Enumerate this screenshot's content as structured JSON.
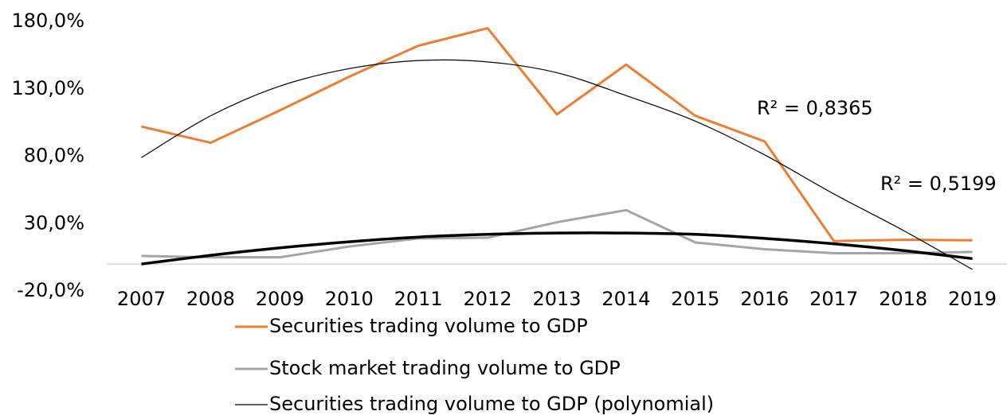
{
  "chart_data": {
    "type": "line",
    "categories": [
      "2007",
      "2008",
      "2009",
      "2010",
      "2011",
      "2012",
      "2013",
      "2014",
      "2015",
      "2016",
      "2017",
      "2018",
      "2019"
    ],
    "series": [
      {
        "name": "Securities trading volume to GDP",
        "color": "#ed7d31",
        "width": 3,
        "values": [
          102,
          90,
          114,
          139,
          162,
          175,
          111,
          148,
          110,
          91,
          17,
          18,
          17.6
        ]
      },
      {
        "name": "Stock market trading volume to GDP",
        "color": "#a5a5a5",
        "width": 3,
        "values": [
          6,
          5,
          5,
          13,
          19,
          19.5,
          31,
          40,
          16,
          11,
          8,
          8,
          9
        ]
      },
      {
        "name": "Securities trading volume to GDP (polynomial)",
        "color": "#000000",
        "width": 1.2,
        "smooth": true,
        "values": [
          79,
          110,
          132,
          145,
          151,
          150,
          142,
          125,
          106,
          81,
          52,
          25,
          -4
        ]
      },
      {
        "color": "#000000",
        "width": 3.5,
        "smooth": true,
        "values": [
          0,
          6.5,
          12,
          16.5,
          20,
          22,
          23,
          23,
          22,
          19,
          15,
          10,
          4
        ]
      }
    ],
    "annotations": [
      "R² = 0,8365",
      "R² = 0,5199"
    ],
    "ylim": [
      -20,
      180
    ],
    "yticks": [
      {
        "value": -20,
        "label": "-20,0%"
      },
      {
        "value": 30,
        "label": "30,0%"
      },
      {
        "value": 80,
        "label": "80,0%"
      },
      {
        "value": 130,
        "label": "130,0%"
      },
      {
        "value": 180,
        "label": "180,0%"
      }
    ],
    "grid": false
  }
}
